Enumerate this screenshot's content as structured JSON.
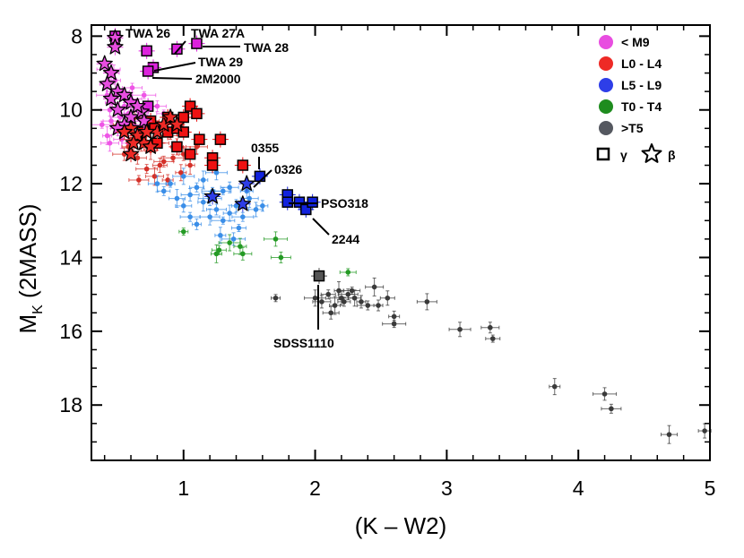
{
  "chart_data": {
    "type": "scatter",
    "xlabel": "(K – W2)",
    "ylabel": "M",
    "ylabel_sub": "K",
    "ylabel_suffix": " (2MASS)",
    "xlim": [
      0.3,
      5.0
    ],
    "ylim": [
      7.7,
      19.5
    ],
    "y_inverted": true,
    "xticks": [
      1,
      2,
      3,
      4,
      5
    ],
    "xtick_labels": [
      "1",
      "2",
      "3",
      "4",
      "5"
    ],
    "yticks": [
      8,
      10,
      12,
      14,
      16,
      18
    ],
    "ytick_labels": [
      "8",
      "10",
      "12",
      "14",
      "16",
      "18"
    ],
    "legend_position": "top-right",
    "colors": {
      "lt_m9": "#e84de0",
      "l0_l4": "#ee2a26",
      "l5_l9": "#2e3ee8",
      "t0_t4": "#1e8c1e",
      "gt_t5": "#555860",
      "field_m": "#ee55e6",
      "field_l0": "#d43028",
      "field_l5": "#3a8ee8",
      "field_t0": "#249a24",
      "field_t5": "#3a3a3a",
      "sq_m9": "#dd22dd",
      "sq_l0": "#ee1111",
      "sq_l5": "#1122dd",
      "sq_t5": "#555555"
    },
    "legend": [
      {
        "label": "< M9",
        "color_key": "lt_m9"
      },
      {
        "label": "L0 - L4",
        "color_key": "l0_l4"
      },
      {
        "label": "L5 - L9",
        "color_key": "l5_l9"
      },
      {
        "label": "T0 - T4",
        "color_key": "t0_t4"
      },
      {
        "label": ">T5",
        "color_key": "gt_t5"
      }
    ],
    "legend_symbols": {
      "gamma": "γ",
      "beta": "β"
    },
    "series": [
      {
        "name": "field M",
        "color_key": "field_m",
        "points": [
          [
            0.4,
            9.3
          ],
          [
            0.42,
            9.6
          ],
          [
            0.44,
            10.0
          ],
          [
            0.46,
            9.8
          ],
          [
            0.48,
            9.2
          ],
          [
            0.5,
            9.5
          ],
          [
            0.52,
            10.2
          ],
          [
            0.45,
            10.3
          ],
          [
            0.55,
            9.9
          ],
          [
            0.58,
            10.1
          ],
          [
            0.6,
            9.7
          ],
          [
            0.62,
            10.4
          ],
          [
            0.5,
            10.5
          ],
          [
            0.65,
            10.0
          ],
          [
            0.7,
            9.6
          ],
          [
            0.68,
            10.3
          ],
          [
            0.72,
            10.2
          ],
          [
            0.75,
            9.9
          ],
          [
            0.42,
            10.7
          ],
          [
            0.55,
            10.6
          ],
          [
            0.8,
            9.9
          ],
          [
            0.85,
            10.1
          ],
          [
            0.47,
            9.0
          ],
          [
            0.43,
            8.9
          ],
          [
            0.61,
            9.4
          ],
          [
            0.53,
            10.8
          ],
          [
            0.58,
            10.9
          ],
          [
            0.66,
            10.6
          ],
          [
            0.38,
            10.4
          ],
          [
            0.44,
            10.9
          ]
        ]
      },
      {
        "name": "field L0-L4",
        "color_key": "field_l0",
        "points": [
          [
            0.5,
            10.4
          ],
          [
            0.6,
            10.8
          ],
          [
            0.65,
            11.3
          ],
          [
            0.7,
            10.5
          ],
          [
            0.75,
            11.1
          ],
          [
            0.8,
            10.9
          ],
          [
            0.85,
            11.4
          ],
          [
            0.9,
            10.7
          ],
          [
            0.95,
            11.0
          ],
          [
            1.0,
            11.2
          ],
          [
            0.72,
            11.6
          ],
          [
            0.78,
            11.8
          ],
          [
            0.82,
            11.5
          ],
          [
            0.88,
            11.9
          ],
          [
            0.92,
            11.3
          ],
          [
            0.68,
            10.9
          ],
          [
            0.63,
            10.2
          ],
          [
            0.58,
            11.0
          ],
          [
            1.05,
            11.5
          ],
          [
            1.1,
            11.0
          ],
          [
            0.86,
            10.4
          ],
          [
            0.76,
            10.3
          ],
          [
            0.98,
            11.7
          ],
          [
            0.55,
            11.2
          ],
          [
            0.66,
            11.9
          ]
        ]
      },
      {
        "name": "field L5-L9",
        "color_key": "field_l5",
        "points": [
          [
            0.9,
            12.0
          ],
          [
            1.0,
            11.8
          ],
          [
            1.05,
            12.3
          ],
          [
            1.1,
            12.1
          ],
          [
            1.15,
            12.5
          ],
          [
            1.2,
            12.4
          ],
          [
            1.25,
            12.7
          ],
          [
            1.3,
            12.2
          ],
          [
            1.35,
            12.8
          ],
          [
            1.4,
            12.6
          ],
          [
            1.45,
            12.9
          ],
          [
            1.5,
            12.4
          ],
          [
            1.55,
            12.7
          ],
          [
            1.6,
            12.6
          ],
          [
            1.3,
            13.0
          ],
          [
            1.2,
            12.9
          ],
          [
            1.0,
            12.6
          ],
          [
            0.85,
            12.2
          ],
          [
            1.15,
            11.9
          ],
          [
            1.25,
            11.7
          ],
          [
            1.35,
            12.1
          ],
          [
            1.42,
            13.2
          ],
          [
            1.28,
            13.4
          ],
          [
            1.38,
            13.5
          ],
          [
            1.05,
            12.9
          ],
          [
            0.95,
            12.4
          ],
          [
            1.48,
            12.2
          ],
          [
            1.1,
            13.1
          ],
          [
            1.22,
            12.2
          ],
          [
            0.8,
            12.0
          ]
        ]
      },
      {
        "name": "field T0-T4",
        "color_key": "field_t0",
        "points": [
          [
            1.0,
            13.3
          ],
          [
            1.35,
            13.6
          ],
          [
            1.45,
            13.9
          ],
          [
            1.27,
            13.8
          ],
          [
            1.25,
            13.9
          ],
          [
            1.7,
            13.5
          ],
          [
            1.74,
            14.0
          ],
          [
            2.25,
            14.4
          ],
          [
            1.43,
            13.7
          ]
        ]
      },
      {
        "name": "field >T5",
        "color_key": "field_t5",
        "points": [
          [
            1.7,
            15.1
          ],
          [
            2.0,
            15.1
          ],
          [
            2.05,
            15.2
          ],
          [
            2.1,
            15.0
          ],
          [
            2.15,
            15.3
          ],
          [
            2.2,
            15.1
          ],
          [
            2.25,
            15.0
          ],
          [
            2.28,
            14.9
          ],
          [
            2.3,
            15.1
          ],
          [
            2.35,
            15.2
          ],
          [
            2.4,
            15.3
          ],
          [
            2.45,
            14.8
          ],
          [
            2.55,
            15.1
          ],
          [
            2.6,
            15.6
          ],
          [
            2.6,
            15.8
          ],
          [
            2.85,
            15.2
          ],
          [
            2.12,
            15.5
          ],
          [
            2.22,
            15.2
          ],
          [
            2.18,
            14.9
          ],
          [
            3.1,
            15.95
          ],
          [
            3.33,
            15.9
          ],
          [
            3.35,
            16.2
          ],
          [
            3.82,
            17.5
          ],
          [
            4.2,
            17.7
          ],
          [
            4.25,
            18.1
          ],
          [
            4.69,
            18.8
          ],
          [
            4.96,
            18.7
          ],
          [
            2.48,
            15.3
          ]
        ]
      }
    ],
    "squares": [
      {
        "name": "< M9 gamma",
        "color_key": "sq_m9",
        "points": [
          [
            0.48,
            8.0
          ],
          [
            0.72,
            8.4
          ],
          [
            0.95,
            8.35
          ],
          [
            1.1,
            8.2
          ],
          [
            0.77,
            8.85
          ],
          [
            0.73,
            8.95
          ],
          [
            0.73,
            9.9
          ]
        ]
      },
      {
        "name": "L0-L4 gamma",
        "color_key": "sq_l0",
        "points": [
          [
            0.75,
            10.3
          ],
          [
            0.8,
            10.9
          ],
          [
            0.88,
            10.6
          ],
          [
            0.95,
            10.5
          ],
          [
            1.0,
            10.2
          ],
          [
            1.05,
            9.9
          ],
          [
            1.1,
            10.1
          ],
          [
            1.0,
            10.6
          ],
          [
            0.95,
            11.0
          ],
          [
            1.05,
            11.2
          ],
          [
            1.12,
            10.8
          ],
          [
            1.22,
            11.3
          ],
          [
            1.22,
            11.5
          ],
          [
            1.28,
            10.8
          ],
          [
            1.45,
            11.5
          ],
          [
            0.68,
            10.6
          ],
          [
            0.78,
            10.5
          ],
          [
            0.88,
            10.2
          ]
        ]
      },
      {
        "name": "L5-L9 gamma",
        "color_key": "sq_l5",
        "points": [
          [
            1.58,
            11.8
          ],
          [
            1.79,
            12.3
          ],
          [
            1.79,
            12.5
          ],
          [
            1.88,
            12.5
          ],
          [
            1.93,
            12.7
          ],
          [
            1.98,
            12.5
          ]
        ]
      },
      {
        "name": ">T5 gamma",
        "color_key": "sq_t5",
        "points": [
          [
            2.03,
            14.5
          ]
        ]
      }
    ],
    "stars": [
      {
        "name": "< M9 beta",
        "color_key": "lt_m9",
        "points": [
          [
            0.48,
            8.05
          ],
          [
            0.48,
            8.3
          ],
          [
            0.4,
            8.75
          ],
          [
            0.45,
            9.0
          ],
          [
            0.42,
            9.3
          ],
          [
            0.5,
            9.5
          ],
          [
            0.45,
            9.7
          ],
          [
            0.55,
            9.6
          ],
          [
            0.5,
            10.0
          ],
          [
            0.6,
            9.8
          ],
          [
            0.6,
            10.2
          ],
          [
            0.55,
            10.4
          ],
          [
            0.68,
            10.05
          ],
          [
            0.65,
            9.9
          ],
          [
            0.5,
            10.5
          ],
          [
            0.7,
            10.3
          ]
        ]
      },
      {
        "name": "L0-L4 beta",
        "color_key": "l0_l4",
        "points": [
          [
            0.6,
            10.5
          ],
          [
            0.65,
            10.7
          ],
          [
            0.7,
            10.9
          ],
          [
            0.75,
            11.0
          ],
          [
            0.8,
            10.6
          ],
          [
            0.85,
            10.4
          ],
          [
            0.9,
            10.2
          ],
          [
            0.72,
            10.6
          ],
          [
            0.6,
            11.2
          ],
          [
            0.62,
            10.9
          ],
          [
            0.55,
            10.6
          ],
          [
            0.95,
            10.4
          ]
        ]
      },
      {
        "name": "L5-L9 beta",
        "color_key": "l5_l9",
        "points": [
          [
            1.22,
            12.35
          ],
          [
            1.45,
            12.55
          ],
          [
            1.48,
            12.0
          ]
        ]
      }
    ],
    "annotations": [
      {
        "text": "TWA 26"
      },
      {
        "text": "TWA 27A"
      },
      {
        "text": "TWA 28"
      },
      {
        "text": "TWA 29"
      },
      {
        "text": "2M2000"
      },
      {
        "text": "0355"
      },
      {
        "text": "0326"
      },
      {
        "text": "PSO318"
      },
      {
        "text": "2244"
      },
      {
        "text": "SDSS1110"
      }
    ]
  }
}
